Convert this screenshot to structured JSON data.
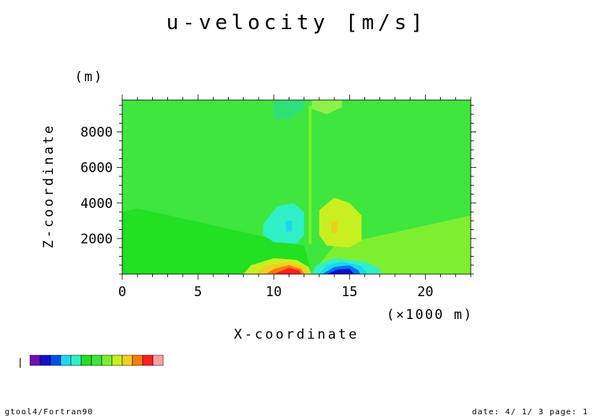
{
  "chart_data": {
    "type": "heatmap",
    "title": "u-velocity [m/s]",
    "xlabel": "X-coordinate",
    "x_unit": "(×1000 m)",
    "ylabel": "Z-coordinate",
    "y_unit": "(m)",
    "xlim": [
      0,
      23
    ],
    "ylim": [
      0,
      9800
    ],
    "x_ticks": [
      0,
      5,
      10,
      15,
      20
    ],
    "x_tick_labels": [
      "0",
      "5",
      "10",
      "15",
      "20"
    ],
    "y_ticks": [
      2000,
      4000,
      6000,
      8000
    ],
    "y_tick_labels": [
      "2000",
      "4000",
      "6000",
      "8000"
    ],
    "background_level": "#3ee63e",
    "regions": [
      {
        "level": "#22e022",
        "polygon": [
          [
            0,
            0
          ],
          [
            0,
            3500
          ],
          [
            1,
            3700
          ],
          [
            12,
            1600
          ],
          [
            12.5,
            0
          ]
        ]
      },
      {
        "level": "#7eef2e",
        "polygon": [
          [
            12.5,
            0
          ],
          [
            14,
            1600
          ],
          [
            23,
            3300
          ],
          [
            23,
            0
          ]
        ]
      },
      {
        "level": "#7eef2e",
        "polygon": [
          [
            12.3,
            9500
          ],
          [
            12.3,
            1700
          ],
          [
            12.5,
            1700
          ],
          [
            12.5,
            9500
          ]
        ]
      },
      {
        "level": "#2fe07a",
        "polygon": [
          [
            10,
            8800
          ],
          [
            11,
            8700
          ],
          [
            12,
            9300
          ],
          [
            12,
            9800
          ],
          [
            10,
            9800
          ]
        ]
      },
      {
        "level": "#8ef04a",
        "polygon": [
          [
            12.5,
            9300
          ],
          [
            13.5,
            9000
          ],
          [
            14.5,
            9400
          ],
          [
            14.5,
            9800
          ],
          [
            12.5,
            9800
          ]
        ]
      },
      {
        "level": "#30f0c8",
        "polygon": [
          [
            9.3,
            2800
          ],
          [
            10.2,
            3800
          ],
          [
            11.3,
            4000
          ],
          [
            12,
            3500
          ],
          [
            12,
            2200
          ],
          [
            11.5,
            1700
          ],
          [
            10,
            1800
          ],
          [
            9.3,
            2200
          ]
        ]
      },
      {
        "level": "#1ad8f0",
        "polygon": [
          [
            10.8,
            2400
          ],
          [
            11.2,
            2400
          ],
          [
            11.2,
            3000
          ],
          [
            10.8,
            3000
          ]
        ]
      },
      {
        "level": "#c8f020",
        "polygon": [
          [
            13,
            2200
          ],
          [
            13,
            3600
          ],
          [
            14,
            4300
          ],
          [
            15,
            4000
          ],
          [
            15.8,
            3300
          ],
          [
            15.8,
            1900
          ],
          [
            15,
            1500
          ],
          [
            13.5,
            1600
          ]
        ]
      },
      {
        "level": "#f0d020",
        "polygon": [
          [
            13.8,
            2300
          ],
          [
            14.2,
            2300
          ],
          [
            14.2,
            3000
          ],
          [
            13.8,
            3000
          ]
        ]
      },
      {
        "level": "#c8f020",
        "polygon": [
          [
            8,
            0
          ],
          [
            8.5,
            500
          ],
          [
            10,
            900
          ],
          [
            11.5,
            800
          ],
          [
            12.3,
            400
          ],
          [
            12.5,
            0
          ]
        ]
      },
      {
        "level": "#f0d020",
        "polygon": [
          [
            8.8,
            0
          ],
          [
            9.5,
            500
          ],
          [
            11,
            700
          ],
          [
            12,
            400
          ],
          [
            12.3,
            0
          ]
        ]
      },
      {
        "level": "#ff7a10",
        "polygon": [
          [
            9.5,
            0
          ],
          [
            10,
            300
          ],
          [
            11,
            500
          ],
          [
            11.8,
            300
          ],
          [
            12,
            0
          ]
        ]
      },
      {
        "level": "#ff2020",
        "polygon": [
          [
            10,
            0
          ],
          [
            11,
            350
          ],
          [
            11.7,
            200
          ],
          [
            11.8,
            0
          ]
        ]
      },
      {
        "level": "#30f0c8",
        "polygon": [
          [
            12.5,
            0
          ],
          [
            12.8,
            500
          ],
          [
            14,
            900
          ],
          [
            16,
            700
          ],
          [
            17,
            300
          ],
          [
            17,
            0
          ]
        ]
      },
      {
        "level": "#1ad8f0",
        "polygon": [
          [
            13,
            0
          ],
          [
            13.5,
            500
          ],
          [
            14.5,
            700
          ],
          [
            15.8,
            450
          ],
          [
            16.2,
            0
          ]
        ]
      },
      {
        "level": "#0070f0",
        "polygon": [
          [
            13.2,
            0
          ],
          [
            14,
            400
          ],
          [
            15,
            500
          ],
          [
            15.6,
            200
          ],
          [
            15.7,
            0
          ]
        ]
      },
      {
        "level": "#1010c8",
        "polygon": [
          [
            13.5,
            0
          ],
          [
            14.2,
            250
          ],
          [
            15,
            300
          ],
          [
            15.3,
            0
          ]
        ]
      }
    ],
    "colorbar": [
      "#7010b0",
      "#1010c8",
      "#0050f0",
      "#1ad8f0",
      "#30f0c8",
      "#22e022",
      "#3ee63e",
      "#7eef2e",
      "#c8f020",
      "#f0d020",
      "#ff7a10",
      "#ff2020",
      "#ffa0a0"
    ],
    "colorbar_label": "|"
  },
  "footer": {
    "left": "gtool4/Fortran90",
    "right": "date: 4/ 1/ 3 page: 1"
  }
}
